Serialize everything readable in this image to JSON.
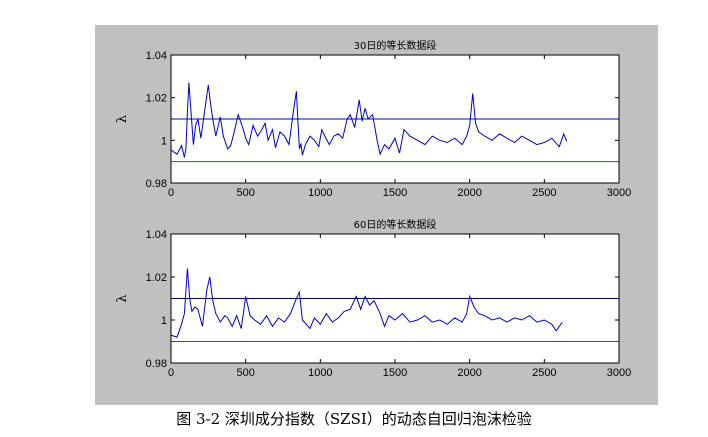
{
  "caption": "图 3-2  深圳成分指数（SZSI）的动态自回归泡沫检验",
  "colors": {
    "background": "#c0c0c0",
    "plot": "#ffffff",
    "series": "#0000cc",
    "upper": "#0000cc",
    "upper2": "#000066",
    "lower": "#008000"
  },
  "chart_data": [
    {
      "type": "line",
      "title": "30日的等长数据段",
      "ylabel": "λ",
      "xlim": [
        0,
        3000
      ],
      "ylim": [
        0.98,
        1.04
      ],
      "xticks": [
        0,
        500,
        1000,
        1500,
        2000,
        2500,
        3000
      ],
      "yticks": [
        0.98,
        1.0,
        1.02,
        1.04
      ],
      "xtick_labels": [
        "0",
        "500",
        "1000",
        "1500",
        "2000",
        "2500",
        "3000"
      ],
      "ytick_labels": [
        "0.98",
        "1",
        "1.02",
        "1.04"
      ],
      "reference_lines": [
        1.01,
        0.99
      ],
      "series_x": [
        0,
        40,
        70,
        90,
        100,
        110,
        120,
        135,
        150,
        165,
        180,
        200,
        230,
        250,
        265,
        280,
        300,
        330,
        350,
        380,
        400,
        420,
        450,
        480,
        500,
        520,
        550,
        580,
        600,
        630,
        650,
        680,
        700,
        730,
        760,
        790,
        820,
        840,
        850,
        860,
        870,
        880,
        900,
        930,
        960,
        990,
        1010,
        1030,
        1060,
        1090,
        1120,
        1150,
        1180,
        1200,
        1230,
        1260,
        1280,
        1300,
        1320,
        1350,
        1380,
        1400,
        1430,
        1460,
        1500,
        1530,
        1560,
        1600,
        1650,
        1700,
        1750,
        1800,
        1850,
        1900,
        1950,
        1980,
        2000,
        2020,
        2040,
        2060,
        2100,
        2150,
        2200,
        2250,
        2300,
        2350,
        2400,
        2450,
        2500,
        2550,
        2600,
        2630,
        2650
      ],
      "series_y": [
        0.9955,
        0.9935,
        0.9975,
        0.992,
        0.996,
        1.013,
        1.027,
        1.012,
        0.998,
        1.007,
        1.01,
        1.001,
        1.016,
        1.026,
        1.017,
        1.01,
        1.002,
        1.011,
        1.002,
        0.996,
        0.9975,
        1.003,
        1.012,
        1.006,
        1.001,
        0.998,
        1.007,
        1.002,
        1.004,
        1.008,
        1.0,
        1.005,
        0.9965,
        1.004,
        1.002,
        0.998,
        1.014,
        1.023,
        1.009,
        0.996,
        0.9985,
        0.993,
        0.998,
        1.002,
        1.0,
        0.997,
        1.005,
        1.002,
        0.998,
        1.002,
        1.003,
        1.001,
        1.01,
        1.012,
        1.006,
        1.019,
        1.009,
        1.015,
        1.01,
        1.012,
        1.0,
        0.9935,
        0.998,
        0.996,
        1.001,
        0.994,
        1.005,
        1.002,
        1.0,
        0.998,
        1.002,
        1.0,
        0.999,
        1.001,
        0.998,
        1.002,
        1.007,
        1.022,
        1.008,
        1.004,
        1.002,
        1.0,
        1.003,
        1.001,
        0.999,
        1.002,
        1.0,
        0.998,
        0.999,
        1.001,
        0.997,
        1.003,
        0.9995
      ]
    },
    {
      "type": "line",
      "title": "60日的等长数据段",
      "ylabel": "λ",
      "xlim": [
        0,
        3000
      ],
      "ylim": [
        0.98,
        1.04
      ],
      "xticks": [
        0,
        500,
        1000,
        1500,
        2000,
        2500,
        3000
      ],
      "yticks": [
        0.98,
        1.0,
        1.02,
        1.04
      ],
      "xtick_labels": [
        "0",
        "500",
        "1000",
        "1500",
        "2000",
        "2500",
        "3000"
      ],
      "ytick_labels": [
        "0.98",
        "1",
        "1.02",
        "1.04"
      ],
      "reference_lines": [
        1.01,
        0.99
      ],
      "series_x": [
        0,
        40,
        70,
        90,
        110,
        125,
        140,
        160,
        180,
        210,
        240,
        260,
        280,
        300,
        330,
        360,
        380,
        410,
        440,
        470,
        500,
        530,
        560,
        600,
        640,
        680,
        720,
        760,
        800,
        840,
        860,
        880,
        900,
        930,
        960,
        1000,
        1040,
        1080,
        1120,
        1160,
        1200,
        1240,
        1270,
        1300,
        1330,
        1360,
        1400,
        1430,
        1460,
        1500,
        1550,
        1600,
        1650,
        1700,
        1750,
        1800,
        1850,
        1900,
        1950,
        1980,
        2000,
        2030,
        2060,
        2100,
        2150,
        2200,
        2250,
        2300,
        2350,
        2400,
        2450,
        2500,
        2550,
        2580,
        2620
      ],
      "series_y": [
        0.993,
        0.992,
        0.998,
        1.003,
        1.024,
        1.01,
        1.004,
        1.006,
        1.005,
        0.997,
        1.014,
        1.02,
        1.009,
        1.003,
        0.999,
        1.002,
        1.001,
        0.997,
        1.002,
        0.996,
        1.011,
        1.002,
        1.0,
        0.998,
        1.002,
        0.997,
        1.001,
        0.999,
        1.003,
        1.01,
        1.013,
        1.0,
        0.9985,
        0.996,
        1.001,
        0.998,
        1.003,
        0.999,
        1.001,
        1.004,
        1.005,
        1.011,
        1.005,
        1.011,
        1.007,
        1.009,
        1.003,
        0.997,
        1.002,
        1.0,
        1.003,
        0.999,
        1.0,
        1.002,
        0.999,
        1.0,
        0.998,
        1.001,
        0.999,
        1.003,
        1.011,
        1.006,
        1.003,
        1.002,
        1.0,
        1.001,
        0.999,
        1.001,
        1.0,
        1.002,
        0.999,
        1.0,
        0.998,
        0.995,
        0.999
      ]
    }
  ]
}
